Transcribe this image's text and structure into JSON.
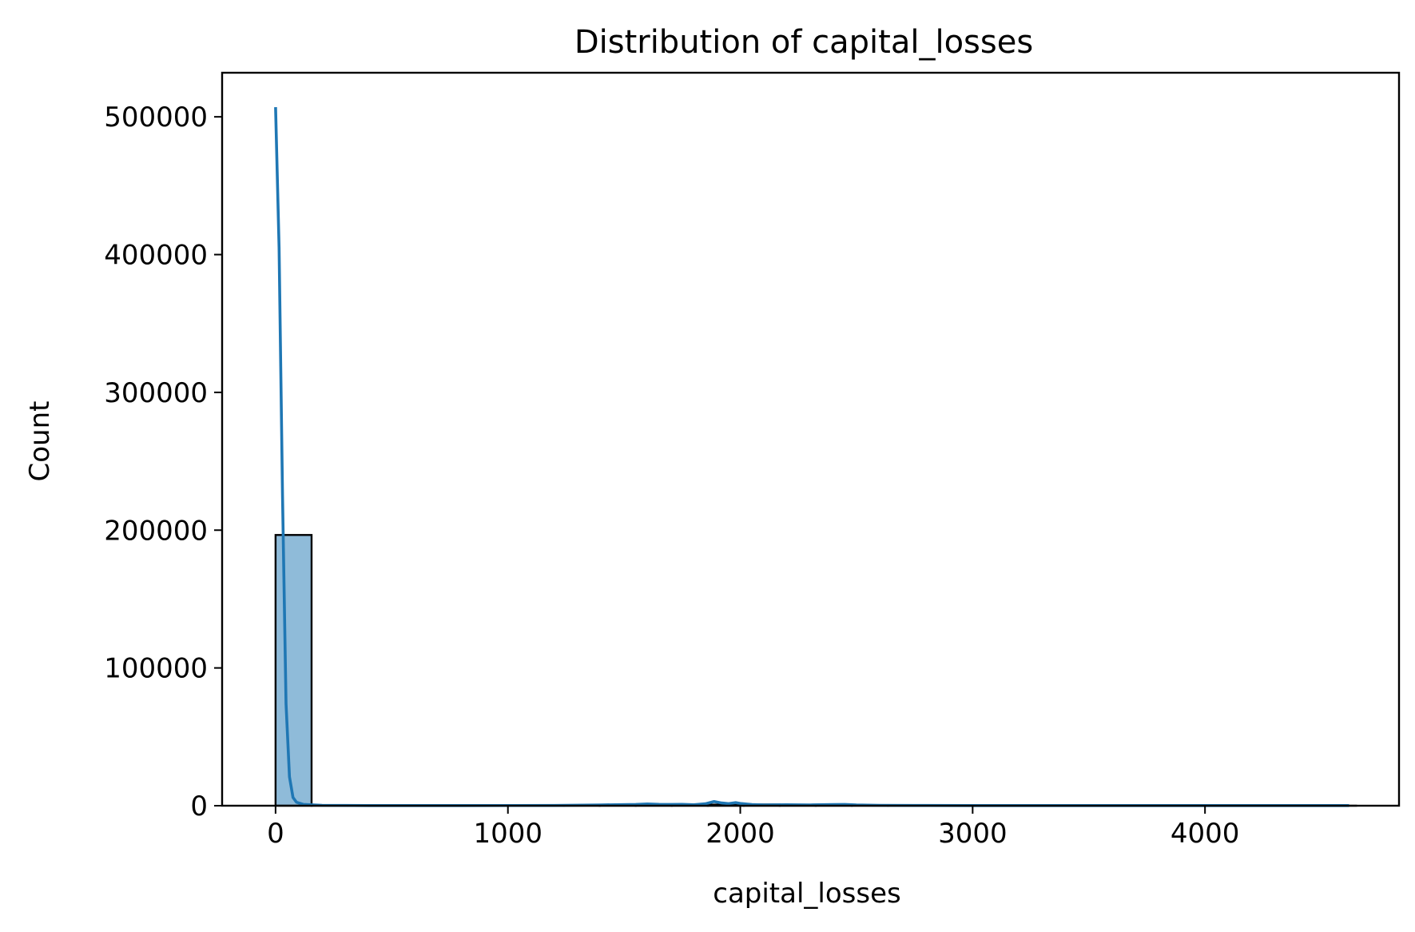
{
  "chart_data": {
    "type": "bar",
    "title": "Distribution of capital_losses",
    "xlabel": "capital_losses",
    "ylabel": "Count",
    "xlim": [
      -230,
      4835
    ],
    "ylim": [
      0,
      532000
    ],
    "xticks": [
      0,
      1000,
      2000,
      3000,
      4000
    ],
    "xtick_labels": [
      "0",
      "1000",
      "2000",
      "3000",
      "4000"
    ],
    "yticks": [
      0,
      100000,
      200000,
      300000,
      400000,
      500000
    ],
    "ytick_labels": [
      "0",
      "100000",
      "200000",
      "300000",
      "400000",
      "500000"
    ],
    "bin_edges": [
      0,
      155,
      310,
      465,
      620,
      775,
      930,
      1085,
      1240,
      1395,
      1550,
      1705,
      1860,
      2015,
      2170,
      2325,
      2480,
      2635,
      2790,
      2945,
      3100,
      3255,
      3410,
      3565,
      3720,
      3875,
      4030,
      4185,
      4340,
      4495,
      4650
    ],
    "counts": [
      196500,
      20,
      15,
      10,
      20,
      15,
      30,
      30,
      60,
      80,
      200,
      300,
      800,
      900,
      250,
      300,
      150,
      60,
      40,
      30,
      15,
      10,
      8,
      6,
      5,
      4,
      3,
      3,
      2,
      2
    ],
    "kde": {
      "x": [
        0,
        15,
        30,
        45,
        60,
        75,
        90,
        120,
        200,
        400,
        800,
        1200,
        1400,
        1550,
        1600,
        1650,
        1700,
        1750,
        1800,
        1850,
        1887,
        1920,
        1950,
        1980,
        2000,
        2050,
        2100,
        2200,
        2300,
        2400,
        2450,
        2500,
        2600,
        2800,
        3000,
        3500,
        4000,
        4620
      ],
      "y": [
        507000,
        405000,
        225000,
        74000,
        21000,
        6000,
        2500,
        900,
        300,
        100,
        100,
        200,
        600,
        900,
        1300,
        1000,
        900,
        1000,
        700,
        1400,
        3000,
        2000,
        1500,
        2200,
        1600,
        800,
        600,
        700,
        600,
        800,
        900,
        500,
        300,
        200,
        100,
        100,
        100,
        100
      ]
    },
    "colors": {
      "bar_fill": "#1f77b4",
      "bar_fill_opacity": 0.5,
      "bar_edge": "#000000",
      "kde_line": "#1f77b4"
    },
    "grid": false,
    "legend": "none"
  }
}
